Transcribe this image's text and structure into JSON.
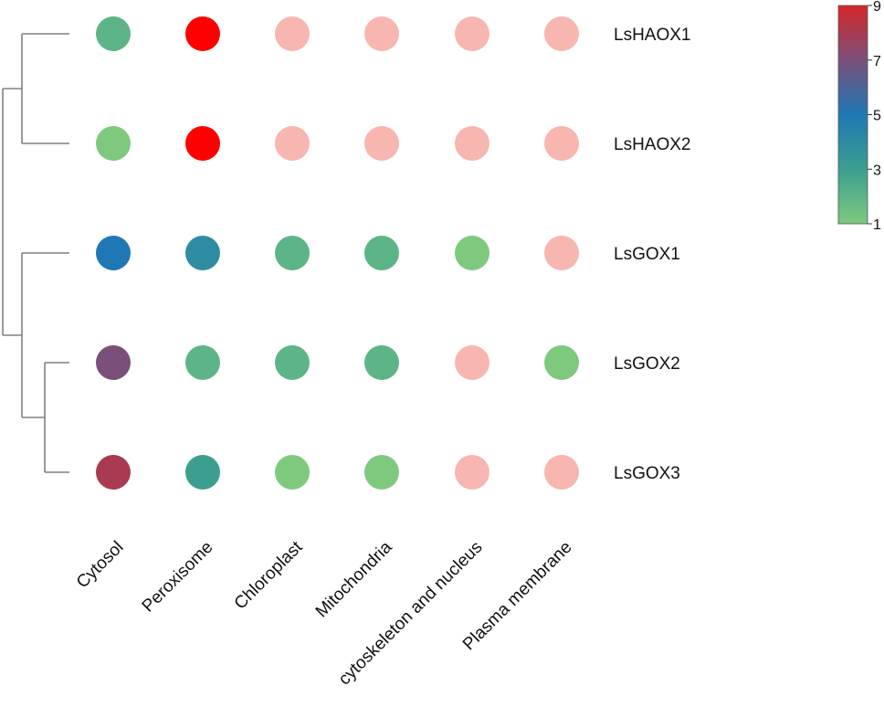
{
  "chart_data": {
    "type": "heatmap",
    "subtype": "dot-matrix with hierarchical clustering dendrogram",
    "rows": [
      "LsHAOX1",
      "LsHAOX2",
      "LsGOX1",
      "LsGOX2",
      "LsGOX3"
    ],
    "columns": [
      "Cytosol",
      "Peroxisome",
      "Chloroplast",
      "Mitochondria",
      "cytoskeleton and nucleus",
      "Plasma membrane"
    ],
    "values": [
      [
        2,
        9,
        0,
        0,
        0,
        0
      ],
      [
        1,
        9,
        0,
        0,
        0,
        0
      ],
      [
        5,
        4,
        2,
        2,
        1,
        0
      ],
      [
        7,
        2,
        2,
        2,
        0,
        1
      ],
      [
        8,
        3,
        1,
        1,
        0,
        0
      ]
    ],
    "zero_color": "#f8b6b0",
    "colorbar": {
      "min": 1,
      "max": 9,
      "ticks": [
        1,
        3,
        5,
        7,
        9
      ],
      "stops": [
        {
          "v": 1,
          "color": "#7fc97f"
        },
        {
          "v": 3,
          "color": "#3b9f8f"
        },
        {
          "v": 5,
          "color": "#1f78b4"
        },
        {
          "v": 7,
          "color": "#7a4f7a"
        },
        {
          "v": 9,
          "color": "#d62728"
        }
      ]
    },
    "dendrogram_groups": [
      [
        "LsHAOX1",
        "LsHAOX2"
      ],
      [
        "LsGOX1",
        [
          "LsGOX2",
          "LsGOX3"
        ]
      ]
    ],
    "legend_placement": "top-right",
    "grid": false
  }
}
